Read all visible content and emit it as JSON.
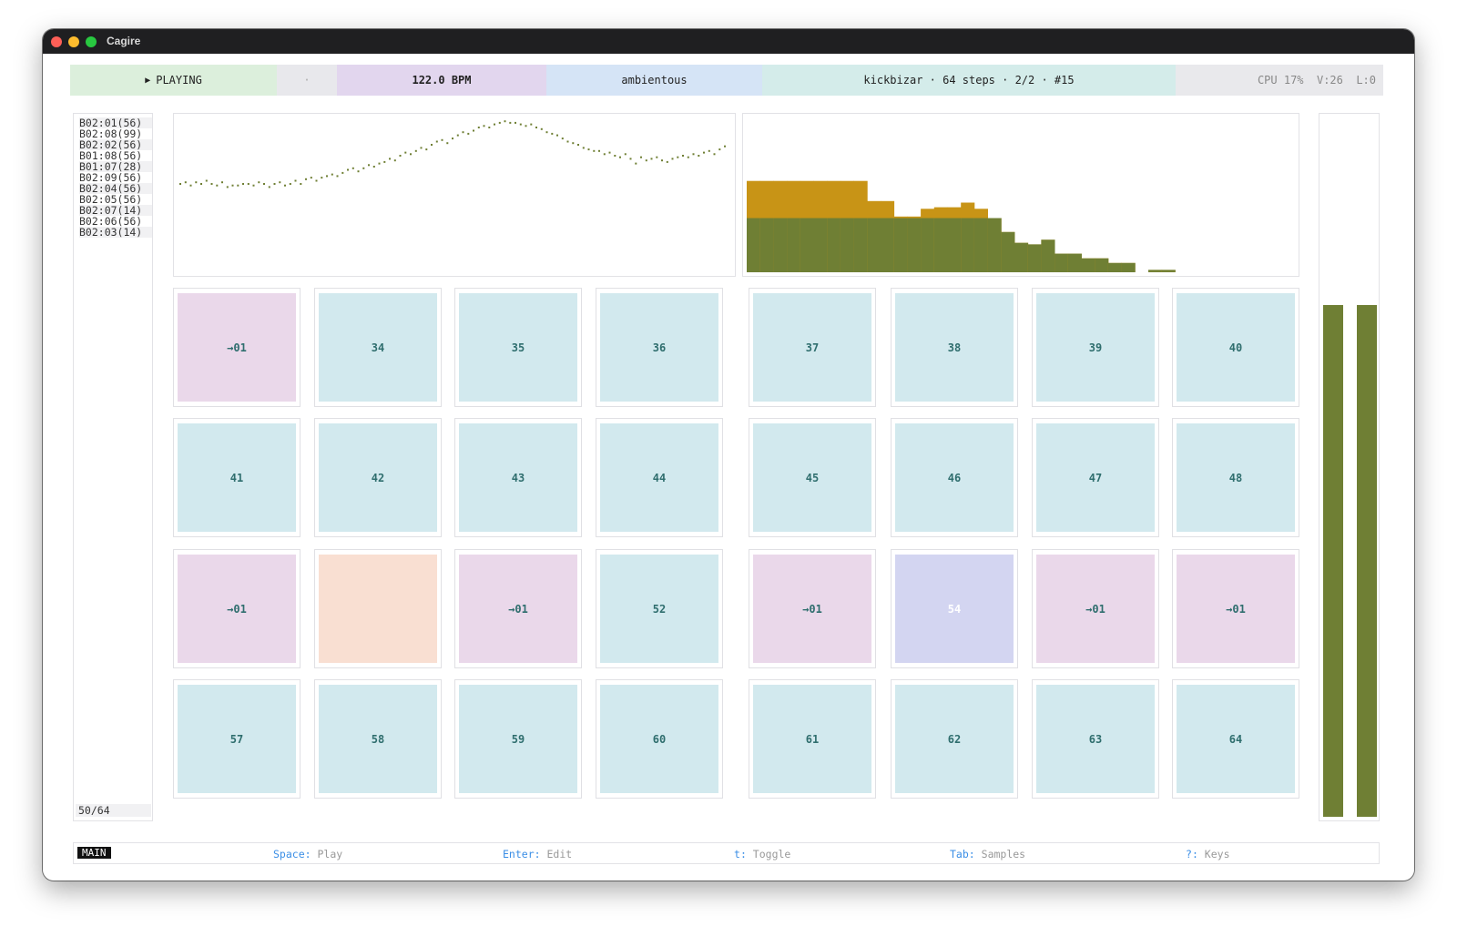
{
  "window": {
    "title": "Cagire"
  },
  "topbar": {
    "play_icon": "play-triangle-icon",
    "status": "PLAYING",
    "separator": "·",
    "bpm": "122.0 BPM",
    "project": "ambientous",
    "pattern_info": "kickbizar · 64 steps · 2/2 · #15",
    "stats": "CPU 17%  V:26  L:0",
    "colors": {
      "status": "#dcefdc",
      "separator": "#e8e8ec",
      "bpm": "#e2d6ee",
      "project": "#d5e4f6",
      "pattern": "#d4ecea",
      "stats": "#e9e9ec"
    }
  },
  "queue": {
    "items": [
      "B02:01(56)",
      "B02:08(99)",
      "B02:02(56)",
      "B01:08(56)",
      "B01:07(28)",
      "B02:09(56)",
      "B02:04(56)",
      "B02:05(56)",
      "B02:07(14)",
      "B02:06(56)",
      "B02:03(14)"
    ],
    "position": "50/64"
  },
  "scope": {
    "color": "#6f7f34",
    "values": [
      0.57,
      0.58,
      0.56,
      0.58,
      0.57,
      0.59,
      0.57,
      0.56,
      0.58,
      0.55,
      0.56,
      0.56,
      0.57,
      0.57,
      0.56,
      0.58,
      0.57,
      0.55,
      0.57,
      0.58,
      0.56,
      0.57,
      0.59,
      0.57,
      0.6,
      0.61,
      0.59,
      0.61,
      0.62,
      0.63,
      0.62,
      0.64,
      0.66,
      0.67,
      0.65,
      0.67,
      0.69,
      0.68,
      0.7,
      0.71,
      0.73,
      0.72,
      0.75,
      0.77,
      0.76,
      0.78,
      0.8,
      0.79,
      0.82,
      0.84,
      0.85,
      0.83,
      0.86,
      0.88,
      0.9,
      0.89,
      0.91,
      0.93,
      0.94,
      0.93,
      0.95,
      0.96,
      0.97,
      0.96,
      0.96,
      0.95,
      0.94,
      0.95,
      0.93,
      0.92,
      0.9,
      0.89,
      0.88,
      0.86,
      0.84,
      0.83,
      0.82,
      0.8,
      0.79,
      0.78,
      0.78,
      0.76,
      0.77,
      0.75,
      0.74,
      0.76,
      0.73,
      0.7,
      0.74,
      0.72,
      0.73,
      0.74,
      0.72,
      0.71,
      0.73,
      0.74,
      0.75,
      0.74,
      0.76,
      0.75,
      0.77,
      0.78,
      0.76,
      0.79,
      0.81
    ]
  },
  "spectrum": {
    "colors": {
      "rms": "#6f7f34",
      "peak": "#c89416"
    },
    "rms": [
      0.35,
      0.35,
      0.35,
      0.35,
      0.35,
      0.35,
      0.35,
      0.35,
      0.35,
      0.35,
      0.35,
      0.35,
      0.35,
      0.35,
      0.35,
      0.35,
      0.35,
      0.35,
      0.35,
      0.26,
      0.19,
      0.18,
      0.21,
      0.12,
      0.12,
      0.09,
      0.09,
      0.06,
      0.06,
      0.0,
      0.015,
      0.015,
      0,
      0,
      0,
      0,
      0,
      0,
      0,
      0
    ],
    "peak": [
      0.59,
      0.59,
      0.59,
      0.59,
      0.59,
      0.59,
      0.59,
      0.59,
      0.59,
      0.46,
      0.46,
      0.36,
      0.36,
      0.41,
      0.42,
      0.42,
      0.45,
      0.41,
      0.35,
      0.26,
      0.19,
      0.18,
      0.21,
      0.12,
      0.12,
      0.09,
      0.09,
      0.06,
      0.06,
      0.0,
      0.015,
      0.015,
      0,
      0,
      0,
      0,
      0,
      0,
      0,
      0
    ]
  },
  "meter": {
    "left": 0.73,
    "right": 0.73,
    "color": "#6f7f34"
  },
  "grid": {
    "colors": {
      "normal": "#d2e9ee",
      "linked": "#ead8ea",
      "current": "#f9dfd2",
      "selected": "#d3d5f1"
    },
    "cells": [
      {
        "label": "→01",
        "type": "linked"
      },
      {
        "label": "34",
        "type": "normal"
      },
      {
        "label": "35",
        "type": "normal"
      },
      {
        "label": "36",
        "type": "normal"
      },
      {
        "label": "37",
        "type": "normal"
      },
      {
        "label": "38",
        "type": "normal"
      },
      {
        "label": "39",
        "type": "normal"
      },
      {
        "label": "40",
        "type": "normal"
      },
      {
        "label": "41",
        "type": "normal"
      },
      {
        "label": "42",
        "type": "normal"
      },
      {
        "label": "43",
        "type": "normal"
      },
      {
        "label": "44",
        "type": "normal"
      },
      {
        "label": "45",
        "type": "normal"
      },
      {
        "label": "46",
        "type": "normal"
      },
      {
        "label": "47",
        "type": "normal"
      },
      {
        "label": "48",
        "type": "normal"
      },
      {
        "label": "→01",
        "type": "linked"
      },
      {
        "label": "",
        "type": "current"
      },
      {
        "label": "→01",
        "type": "linked"
      },
      {
        "label": "52",
        "type": "normal"
      },
      {
        "label": "→01",
        "type": "linked"
      },
      {
        "label": "54",
        "type": "selected"
      },
      {
        "label": "→01",
        "type": "linked"
      },
      {
        "label": "→01",
        "type": "linked"
      },
      {
        "label": "57",
        "type": "normal"
      },
      {
        "label": "58",
        "type": "normal"
      },
      {
        "label": "59",
        "type": "normal"
      },
      {
        "label": "60",
        "type": "normal"
      },
      {
        "label": "61",
        "type": "normal"
      },
      {
        "label": "62",
        "type": "normal"
      },
      {
        "label": "63",
        "type": "normal"
      },
      {
        "label": "64",
        "type": "normal"
      }
    ]
  },
  "footer": {
    "mode": "MAIN",
    "hints": [
      {
        "key": "Space",
        "desc": "Play"
      },
      {
        "key": "Enter",
        "desc": "Edit"
      },
      {
        "key": "t",
        "desc": "Toggle"
      },
      {
        "key": "Tab",
        "desc": "Samples"
      },
      {
        "key": "?",
        "desc": "Keys"
      }
    ]
  }
}
